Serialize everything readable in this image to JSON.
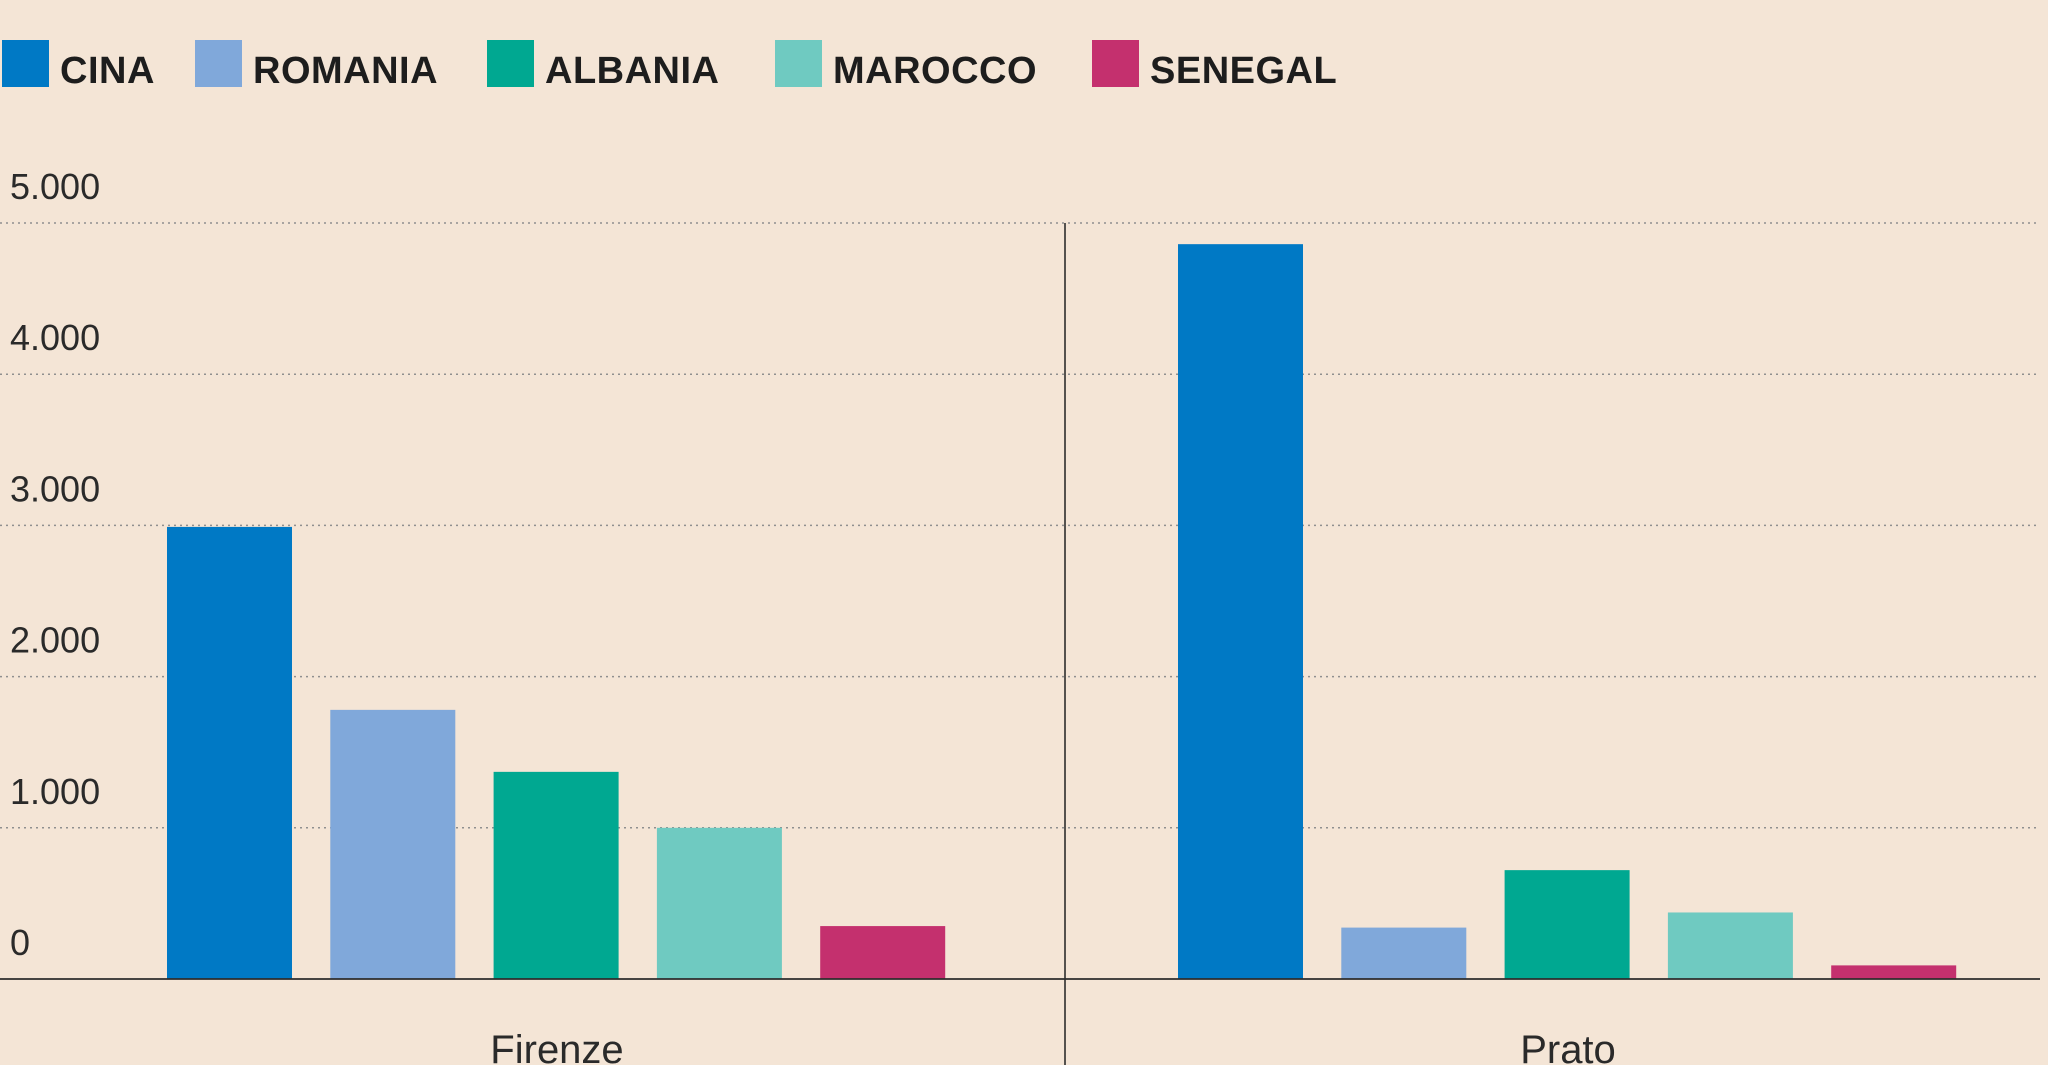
{
  "chart_data": {
    "type": "bar",
    "categories": [
      "Firenze",
      "Prato"
    ],
    "series": [
      {
        "name": "CINA",
        "color": "#0079c5",
        "values": [
          2990,
          4860
        ]
      },
      {
        "name": "ROMANIA",
        "color": "#80a8da",
        "values": [
          1780,
          340
        ]
      },
      {
        "name": "ALBANIA",
        "color": "#00a891",
        "values": [
          1370,
          720
        ]
      },
      {
        "name": "MAROCCO",
        "color": "#6fcac1",
        "values": [
          1000,
          440
        ]
      },
      {
        "name": "SENEGAL",
        "color": "#c4306e",
        "values": [
          350,
          90
        ]
      }
    ],
    "yticks": [
      "0",
      "1.000",
      "2.000",
      "3.000",
      "4.000",
      "5.000"
    ],
    "ytick_values": [
      0,
      1000,
      2000,
      3000,
      4000,
      5000
    ],
    "ylim": [
      0,
      5000
    ],
    "grid": true,
    "legend_position": "top-left",
    "title": "",
    "xlabel": "",
    "ylabel": ""
  }
}
